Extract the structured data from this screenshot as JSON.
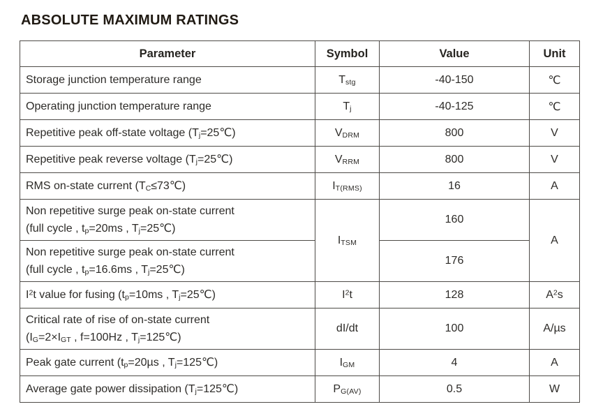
{
  "page": {
    "title": "ABSOLUTE MAXIMUM RATINGS"
  },
  "table": {
    "headers": [
      "Parameter",
      "Symbol",
      "Value",
      "Unit"
    ],
    "rows": [
      {
        "parameter": "Storage junction temperature range",
        "symbol": "T<sub>stg</sub>",
        "value": "-40-150",
        "unit": "℃"
      },
      {
        "parameter": "Operating junction temperature range",
        "symbol": "T<sub>j</sub>",
        "value": "-40-125",
        "unit": "℃"
      },
      {
        "parameter": "Repetitive peak off-state voltage (T<sub>j</sub>=25℃)",
        "symbol": "V<sub>DRM</sub>",
        "value": "800",
        "unit": "V"
      },
      {
        "parameter": "Repetitive peak reverse voltage (T<sub>j</sub>=25℃)",
        "symbol": "V<sub>RRM</sub>",
        "value": "800",
        "unit": "V"
      },
      {
        "parameter": "RMS on-state current (T<sub>C</sub>≤73℃)",
        "symbol": "I<sub>T(RMS)</sub>",
        "value": "16",
        "unit": "A"
      },
      {
        "parameter": "Non repetitive surge peak on-state current<br>(full cycle , t<sub>p</sub>=20ms , T<sub>j</sub>=25℃)",
        "symbol": "I<sub>TSM</sub>",
        "value": "160",
        "unit": "A"
      },
      {
        "parameter": "Non repetitive surge peak on-state current<br>(full cycle , t<sub>p</sub>=16.6ms , T<sub>j</sub>=25℃)",
        "value": "176"
      },
      {
        "parameter": "I<sup>2</sup>t value for fusing (t<sub>p</sub>=10ms , T<sub>j</sub>=25℃)",
        "symbol": "I<sup>2</sup>t",
        "value": "128",
        "unit": "A<sup>2</sup>s"
      },
      {
        "parameter": "Critical rate of rise of on-state current<br>(I<sub>G</sub>=2×I<sub>GT</sub> , f=100Hz , T<sub>j</sub>=125℃)",
        "symbol": "dI/dt",
        "value": "100",
        "unit": "A/µs"
      },
      {
        "parameter": "Peak gate current (t<sub>p</sub>=20µs , T<sub>j</sub>=125℃)",
        "symbol": "I<sub>GM</sub>",
        "value": "4",
        "unit": "A"
      },
      {
        "parameter": "Average gate power dissipation (T<sub>j</sub>=125℃)",
        "symbol": "P<sub>G(AV)</sub>",
        "value": "0.5",
        "unit": "W"
      }
    ]
  }
}
